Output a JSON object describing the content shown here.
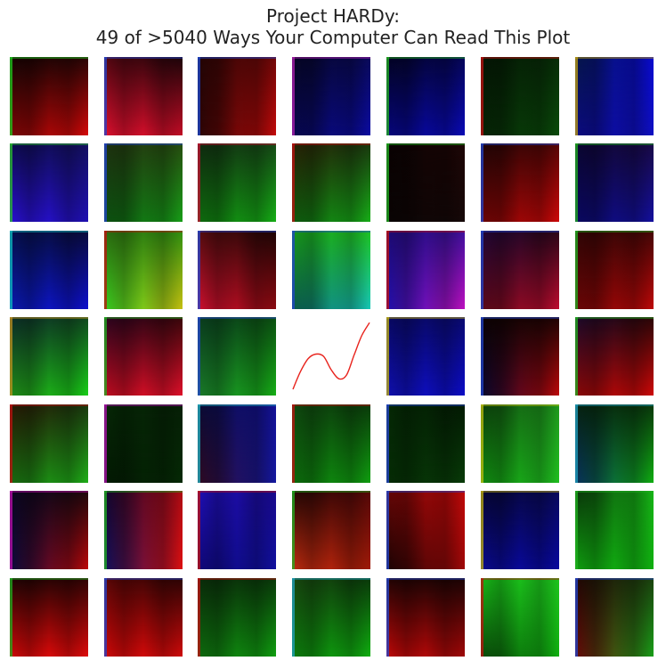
{
  "chart_data": {
    "type": "heatmap",
    "title_line1": "Project HARDy:",
    "title_line2": "49 of >5040 Ways Your Computer Can Read This Plot",
    "layout": {
      "rows": 7,
      "cols": 7
    },
    "center_plot": {
      "type": "line",
      "color": "#e8231d",
      "description": "single curve panel at row 4, column 4",
      "x": [
        0,
        0.1,
        0.2,
        0.3,
        0.4,
        0.5,
        0.6,
        0.7,
        0.8,
        0.9,
        1.0
      ],
      "y": [
        0.06,
        0.3,
        0.47,
        0.53,
        0.5,
        0.32,
        0.2,
        0.25,
        0.52,
        0.78,
        0.95
      ]
    },
    "panels": [
      {
        "row": 1,
        "col": 1,
        "base": "#2a0505",
        "tl": "#120303",
        "tr": "#2a0606",
        "bl": "#7a0606",
        "br": "#d80808",
        "edge": "#1fcc1f"
      },
      {
        "row": 1,
        "col": 2,
        "base": "#2a0610",
        "tl": "#5a0712",
        "tr": "#1a0408",
        "bl": "#e0102f",
        "br": "#c20c25",
        "edge": "#2244cc"
      },
      {
        "row": 1,
        "col": 3,
        "base": "#3a0505",
        "tl": "#200505",
        "tr": "#7a0808",
        "bl": "#2a0505",
        "br": "#c40a0a",
        "edge": "#1a44cc"
      },
      {
        "row": 1,
        "col": 4,
        "base": "#06063a",
        "tl": "#050520",
        "tr": "#0a0a60",
        "bl": "#08084f",
        "br": "#0b0ba4",
        "edge": "#b020b0"
      },
      {
        "row": 1,
        "col": 5,
        "base": "#04043a",
        "tl": "#030320",
        "tr": "#06065e",
        "bl": "#06067c",
        "br": "#0a0ab8",
        "edge": "#20b020"
      },
      {
        "row": 1,
        "col": 6,
        "base": "#052005",
        "tl": "#041404",
        "tr": "#083008",
        "bl": "#062406",
        "br": "#0a4c0a",
        "edge": "#c01010"
      },
      {
        "row": 1,
        "col": 7,
        "base": "#050a50",
        "tl": "#061848",
        "tr": "#0a0ae0",
        "bl": "#0b0b80",
        "br": "#0f0fc4",
        "edge": "#c0a010"
      },
      {
        "row": 2,
        "col": 1,
        "base": "#16107a",
        "tl": "#0c0a4a",
        "tr": "#141060",
        "bl": "#2a10d4",
        "br": "#2010b4",
        "edge": "#2cc02c"
      },
      {
        "row": 2,
        "col": 2,
        "base": "#124012",
        "tl": "#203010",
        "tr": "#2a5010",
        "bl": "#0c5010",
        "br": "#18a018",
        "edge": "#2244cc"
      },
      {
        "row": 2,
        "col": 3,
        "base": "#0a400a",
        "tl": "#102810",
        "tr": "#184c18",
        "bl": "#0e6a0e",
        "br": "#16b016",
        "edge": "#c01030"
      },
      {
        "row": 2,
        "col": 4,
        "base": "#1a3408",
        "tl": "#2c2004",
        "tr": "#1a3a10",
        "bl": "#0e5a0e",
        "br": "#18b018",
        "edge": "#c01010"
      },
      {
        "row": 2,
        "col": 5,
        "base": "#100404",
        "tl": "#080202",
        "tr": "#200606",
        "bl": "#0a0404",
        "br": "#160808",
        "edge": "#20b020"
      },
      {
        "row": 2,
        "col": 6,
        "base": "#3a0505",
        "tl": "#1c0404",
        "tr": "#5a0606",
        "bl": "#6a0505",
        "br": "#d00808",
        "edge": "#2244cc"
      },
      {
        "row": 2,
        "col": 7,
        "base": "#14083a",
        "tl": "#0a0530",
        "tr": "#1a0a4a",
        "bl": "#0a0860",
        "br": "#1410a0",
        "edge": "#20b020"
      },
      {
        "row": 3,
        "col": 1,
        "base": "#04144a",
        "tl": "#051050",
        "tr": "#0a0a3a",
        "bl": "#0a1ab0",
        "br": "#0f10d0",
        "edge": "#10c0c0"
      },
      {
        "row": 3,
        "col": 2,
        "base": "#4a8010",
        "tl": "#2a6a10",
        "tr": "#2c9410",
        "bl": "#34d020",
        "br": "#c8c010",
        "edge": "#c01010"
      },
      {
        "row": 3,
        "col": 3,
        "base": "#3a0608",
        "tl": "#5a0e10",
        "tr": "#1a0404",
        "bl": "#d01030",
        "br": "#8a0a10",
        "edge": "#2244cc"
      },
      {
        "row": 3,
        "col": 4,
        "base": "#106040",
        "tl": "#18a018",
        "tr": "#20d020",
        "bl": "#0a5a4a",
        "br": "#18c8b8",
        "edge": "#2244cc"
      },
      {
        "row": 3,
        "col": 5,
        "base": "#3a109a",
        "tl": "#1a0a70",
        "tr": "#4010a0",
        "bl": "#2010b0",
        "br": "#c010c0",
        "edge": "#c01010"
      },
      {
        "row": 3,
        "col": 6,
        "base": "#300820",
        "tl": "#20063a",
        "tr": "#2a0616",
        "bl": "#5a0818",
        "br": "#c00c30",
        "edge": "#2244cc"
      },
      {
        "row": 3,
        "col": 7,
        "base": "#300404",
        "tl": "#300505",
        "tr": "#4a0606",
        "bl": "#6a0606",
        "br": "#c00808",
        "edge": "#20b020"
      },
      {
        "row": 4,
        "col": 1,
        "base": "#1a4a20",
        "tl": "#0a2a2a",
        "tr": "#104a20",
        "bl": "#208a18",
        "br": "#18d018",
        "edge": "#c09020"
      },
      {
        "row": 4,
        "col": 2,
        "base": "#3a0620",
        "tl": "#2a0420",
        "tr": "#3a0608",
        "bl": "#c00c20",
        "br": "#e0102a",
        "edge": "#20b020"
      },
      {
        "row": 4,
        "col": 3,
        "base": "#105a20",
        "tl": "#0a3a20",
        "tr": "#0c5010",
        "bl": "#1a7a2a",
        "br": "#16b016",
        "edge": "#2244cc"
      },
      {
        "row": 4,
        "col": 4,
        "plot": true
      },
      {
        "row": 4,
        "col": 5,
        "base": "#0a0a7a",
        "tl": "#080860",
        "tr": "#0a0a70",
        "bl": "#1010b0",
        "br": "#0c0cc8",
        "edge": "#c0b010"
      },
      {
        "row": 4,
        "col": 6,
        "base": "#200604",
        "tl": "#0a0202",
        "tr": "#200404",
        "bl": "#060630",
        "br": "#c00808",
        "edge": "#2244cc"
      },
      {
        "row": 4,
        "col": 7,
        "base": "#3a0606",
        "tl": "#1a0a30",
        "tr": "#2a0606",
        "bl": "#8a0808",
        "br": "#d00808",
        "edge": "#20b020"
      },
      {
        "row": 5,
        "col": 1,
        "base": "#203a08",
        "tl": "#2a1404",
        "tr": "#1a3a10",
        "bl": "#186a10",
        "br": "#20b018",
        "edge": "#c01010"
      },
      {
        "row": 5,
        "col": 2,
        "base": "#042004",
        "tl": "#062a06",
        "tr": "#062006",
        "bl": "#031a03",
        "br": "#052a05",
        "edge": "#b010b0"
      },
      {
        "row": 5,
        "col": 3,
        "base": "#101a50",
        "tl": "#0a0a30",
        "tr": "#1410a0",
        "bl": "#300a20",
        "br": "#1418a0",
        "edge": "#20b0c0"
      },
      {
        "row": 5,
        "col": 4,
        "base": "#0c4a0c",
        "tl": "#104a10",
        "tr": "#0a3a0a",
        "bl": "#0c6a0c",
        "br": "#10a010",
        "edge": "#c01010"
      },
      {
        "row": 5,
        "col": 5,
        "base": "#042404",
        "tl": "#052a05",
        "tr": "#031a03",
        "bl": "#052c05",
        "br": "#083c08",
        "edge": "#2244cc"
      },
      {
        "row": 5,
        "col": 6,
        "base": "#186a10",
        "tl": "#0a3a0a",
        "tr": "#20a020",
        "bl": "#108a10",
        "br": "#20c020",
        "edge": "#c0c010"
      },
      {
        "row": 5,
        "col": 7,
        "base": "#063a18",
        "tl": "#052010",
        "tr": "#0a3a0a",
        "bl": "#083060",
        "br": "#10b010",
        "edge": "#20a0c0"
      },
      {
        "row": 6,
        "col": 1,
        "base": "#14082a",
        "tl": "#0a0520",
        "tr": "#200808",
        "bl": "#0a0a40",
        "br": "#c00808",
        "edge": "#c010b0"
      },
      {
        "row": 6,
        "col": 2,
        "base": "#2a0430",
        "tl": "#0c0630",
        "tr": "#c00c10",
        "bl": "#101060",
        "br": "#e01010",
        "edge": "#20b020"
      },
      {
        "row": 6,
        "col": 3,
        "base": "#14087a",
        "tl": "#2010c0",
        "tr": "#1a0a90",
        "bl": "#10087a",
        "br": "#1010a0",
        "edge": "#c01010"
      },
      {
        "row": 6,
        "col": 4,
        "base": "#3a0a04",
        "tl": "#200604",
        "tr": "#5a0808",
        "bl": "#c02c10",
        "br": "#a01a08",
        "edge": "#20b020"
      },
      {
        "row": 6,
        "col": 5,
        "base": "#3a0404",
        "tl": "#6a0606",
        "tr": "#d00a0a",
        "bl": "#1a0404",
        "br": "#a00808",
        "edge": "#2244cc"
      },
      {
        "row": 6,
        "col": 6,
        "base": "#06064a",
        "tl": "#050530",
        "tr": "#0a0a60",
        "bl": "#0a0a90",
        "br": "#0808a0",
        "edge": "#c0b010"
      },
      {
        "row": 6,
        "col": 7,
        "base": "#0a5a0a",
        "tl": "#0a300a",
        "tr": "#18c018",
        "bl": "#10a010",
        "br": "#10b010",
        "edge": "#20b020"
      },
      {
        "row": 7,
        "col": 1,
        "base": "#3a0404",
        "tl": "#1a0404",
        "tr": "#300404",
        "bl": "#d00808",
        "br": "#e00a0a",
        "edge": "#20b020"
      },
      {
        "row": 7,
        "col": 2,
        "base": "#3a0404",
        "tl": "#600606",
        "tr": "#2a0404",
        "bl": "#d00808",
        "br": "#d00a0a",
        "edge": "#2244cc"
      },
      {
        "row": 7,
        "col": 3,
        "base": "#0c3a0c",
        "tl": "#0a2a0a",
        "tr": "#0a3a0a",
        "bl": "#0e6a0e",
        "br": "#10a010",
        "edge": "#c01010"
      },
      {
        "row": 7,
        "col": 4,
        "base": "#0c3a0c",
        "tl": "#1a4a10",
        "tr": "#0a3a0a",
        "bl": "#0c7a0c",
        "br": "#10b010",
        "edge": "#20a0c0"
      },
      {
        "row": 7,
        "col": 5,
        "base": "#2a0404",
        "tl": "#200404",
        "tr": "#1a0404",
        "bl": "#c00808",
        "br": "#a00808",
        "edge": "#2244cc"
      },
      {
        "row": 7,
        "col": 6,
        "base": "#0c6a0c",
        "tl": "#18c018",
        "tr": "#20d020",
        "bl": "#0a4a0a",
        "br": "#10b010",
        "edge": "#c01010"
      },
      {
        "row": 7,
        "col": 7,
        "base": "#2a1404",
        "tl": "#200404",
        "tr": "#1a4a10",
        "bl": "#6a0808",
        "br": "#18a018",
        "edge": "#2244cc"
      }
    ]
  }
}
